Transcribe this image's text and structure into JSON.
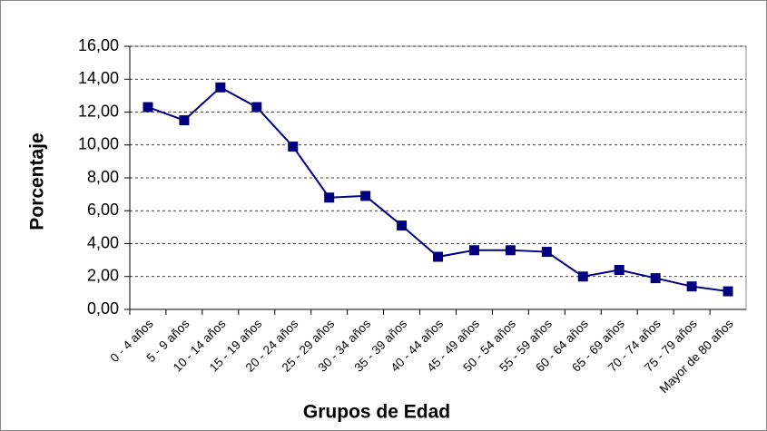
{
  "chart_data": {
    "type": "line",
    "x_label": "Grupos de Edad",
    "y_label": "Porcentaje",
    "categories": [
      "0 - 4 años",
      "5 - 9 años",
      "10 - 14 años",
      "15 - 19 años",
      "20 - 24 años",
      "25 - 29 años",
      "30 - 34 años",
      "35 - 39 años",
      "40 - 44 años",
      "45 - 49 años",
      "50 - 54 años",
      "55 - 59 años",
      "60 - 64 años",
      "65 - 69 años",
      "70 - 74 años",
      "75 - 79 años",
      "Mayor de 80 años"
    ],
    "series": [
      {
        "color": "#000080",
        "values": [
          12.3,
          11.5,
          13.5,
          12.3,
          9.9,
          6.8,
          6.9,
          5.1,
          3.2,
          3.6,
          3.6,
          3.5,
          2.0,
          2.4,
          1.9,
          1.4,
          1.1
        ]
      }
    ],
    "ylim": [
      0,
      16
    ],
    "yticks": [
      {
        "value": 0,
        "label": "0,00"
      },
      {
        "value": 2,
        "label": "2,00"
      },
      {
        "value": 4,
        "label": "4,00"
      },
      {
        "value": 6,
        "label": "6,00"
      },
      {
        "value": 8,
        "label": "8,00"
      },
      {
        "value": 10,
        "label": "10,00"
      },
      {
        "value": 12,
        "label": "12,00"
      },
      {
        "value": 14,
        "label": "14,00"
      },
      {
        "value": 16,
        "label": "16,00"
      }
    ],
    "grid": true
  }
}
